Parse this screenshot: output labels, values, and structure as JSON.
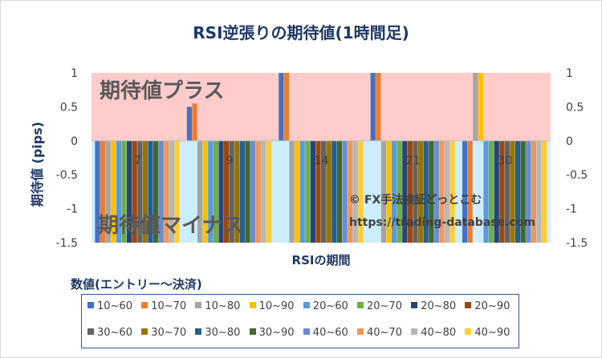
{
  "chart_data": {
    "type": "bar",
    "title": "RSI逆張りの期待値(1時間足)",
    "xlabel": "RSIの期間",
    "ylabel": "期待値 (pips)",
    "ylim": [
      -1.5,
      1
    ],
    "yticks": [
      "1",
      "0.5",
      "0",
      "-0.5",
      "-1",
      "-1.5"
    ],
    "grid": false,
    "legend_title": "数値(エントリー～決済)",
    "legend_position": "bottom",
    "categories": [
      "7",
      "9",
      "14",
      "21",
      "30"
    ],
    "series": [
      {
        "name": "10~60",
        "color": "#4472c4",
        "values": [
          -1.5,
          0.5,
          1,
          1,
          -1.5
        ]
      },
      {
        "name": "10~70",
        "color": "#ed7d31",
        "values": [
          -1.5,
          0.55,
          1,
          1,
          -1.5
        ]
      },
      {
        "name": "10~80",
        "color": "#a5a5a5",
        "values": [
          -1.5,
          -1.5,
          -1.5,
          -1.5,
          1
        ]
      },
      {
        "name": "10~90",
        "color": "#ffc000",
        "values": [
          -1.5,
          -1.5,
          -1.5,
          -1.5,
          1
        ]
      },
      {
        "name": "20~60",
        "color": "#5b9bd5",
        "values": [
          -1.5,
          -1.5,
          -1.5,
          -1.5,
          -1.5
        ]
      },
      {
        "name": "20~70",
        "color": "#70ad47",
        "values": [
          -1.5,
          -1.5,
          -1.5,
          -1.5,
          -1.5
        ]
      },
      {
        "name": "20~80",
        "color": "#264478",
        "values": [
          -1.5,
          -1.5,
          -1.5,
          -1.5,
          -1.5
        ]
      },
      {
        "name": "20~90",
        "color": "#9e480e",
        "values": [
          -1.5,
          -1.5,
          -1.5,
          -1.5,
          -1.5
        ]
      },
      {
        "name": "30~60",
        "color": "#636363",
        "values": [
          -1.5,
          -1.5,
          -1.5,
          -1.5,
          -1.5
        ]
      },
      {
        "name": "30~70",
        "color": "#997300",
        "values": [
          -1.5,
          -1.5,
          -1.5,
          -1.5,
          -1.5
        ]
      },
      {
        "name": "30~80",
        "color": "#255e91",
        "values": [
          -1.5,
          -1.5,
          -1.5,
          -1.5,
          -1.5
        ]
      },
      {
        "name": "30~90",
        "color": "#43682b",
        "values": [
          -1.5,
          -1.5,
          -1.5,
          -1.5,
          -1.5
        ]
      },
      {
        "name": "40~60",
        "color": "#698ed0",
        "values": [
          -1.5,
          -1.5,
          -1.5,
          -1.5,
          -1.5
        ]
      },
      {
        "name": "40~70",
        "color": "#f1975a",
        "values": [
          -1.5,
          -1.5,
          -1.5,
          -1.5,
          -1.5
        ]
      },
      {
        "name": "40~80",
        "color": "#b7b7b7",
        "values": [
          -1.5,
          -1.5,
          -1.5,
          -1.5,
          -1.5
        ]
      },
      {
        "name": "40~90",
        "color": "#ffcd33",
        "values": [
          -1.5,
          -1.5,
          -1.5,
          -1.5,
          -1.5
        ]
      }
    ],
    "annotations": {
      "plus_zone": "期待値プラス",
      "minus_zone": "期待値マイナス",
      "copyright": "© FX手法検証どっとこむ",
      "url": "https://trading-database.com"
    },
    "colors": {
      "plus_zone": "#ffcccc",
      "minus_zone": "#cceeff",
      "title": "#1f3864",
      "axis_label": "#1f3864",
      "zone_text": "#595959",
      "legend_border": "#2f5597"
    }
  }
}
